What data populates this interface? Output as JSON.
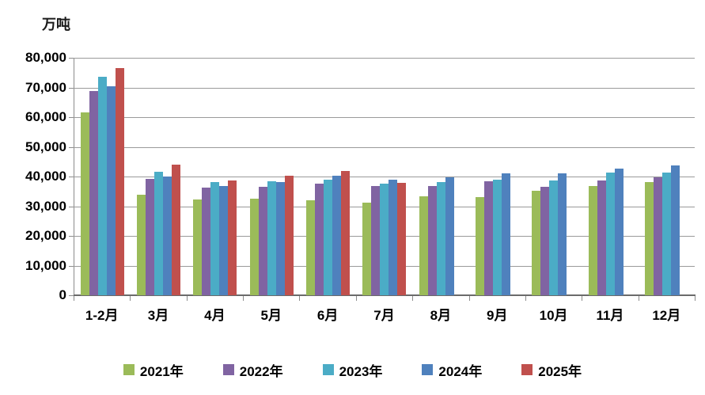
{
  "chart_data": {
    "type": "bar",
    "title": "",
    "unit_label": "万吨",
    "ylabel": "万吨",
    "xlabel": "",
    "grid": "horizontal",
    "legend_position": "bottom",
    "ylim": [
      0,
      80000
    ],
    "ytick_step": 10000,
    "ytick_labels": [
      "0",
      "10,000",
      "20,000",
      "30,000",
      "40,000",
      "50,000",
      "60,000",
      "70,000",
      "80,000"
    ],
    "categories": [
      "1-2月",
      "3月",
      "4月",
      "5月",
      "6月",
      "7月",
      "8月",
      "9月",
      "10月",
      "11月",
      "12月"
    ],
    "series": [
      {
        "name": "2021年",
        "color": "#9BBB59",
        "values": [
          61700,
          34000,
          32200,
          32500,
          32100,
          31200,
          33400,
          33000,
          35300,
          36900,
          38200
        ]
      },
      {
        "name": "2022年",
        "color": "#8064A2",
        "values": [
          68700,
          39200,
          36200,
          36600,
          37600,
          36900,
          36900,
          38300,
          36600,
          38800,
          39800
        ]
      },
      {
        "name": "2023年",
        "color": "#4BACC6",
        "values": [
          73500,
          41500,
          38100,
          38500,
          39000,
          37700,
          38100,
          39000,
          38600,
          41300,
          41300
        ]
      },
      {
        "name": "2024年",
        "color": "#4F81BD",
        "values": [
          70300,
          40000,
          36900,
          38200,
          40300,
          39000,
          39800,
          41100,
          41100,
          42600,
          43800
        ]
      },
      {
        "name": "2025年",
        "color": "#C0504D",
        "values": [
          76500,
          44000,
          38700,
          40200,
          42000,
          37900,
          null,
          null,
          null,
          null,
          null
        ]
      }
    ],
    "colors": {
      "gridline": "#9a9a9a",
      "axis": "#6b6b6b",
      "text": "#000000",
      "background": "#ffffff"
    }
  }
}
